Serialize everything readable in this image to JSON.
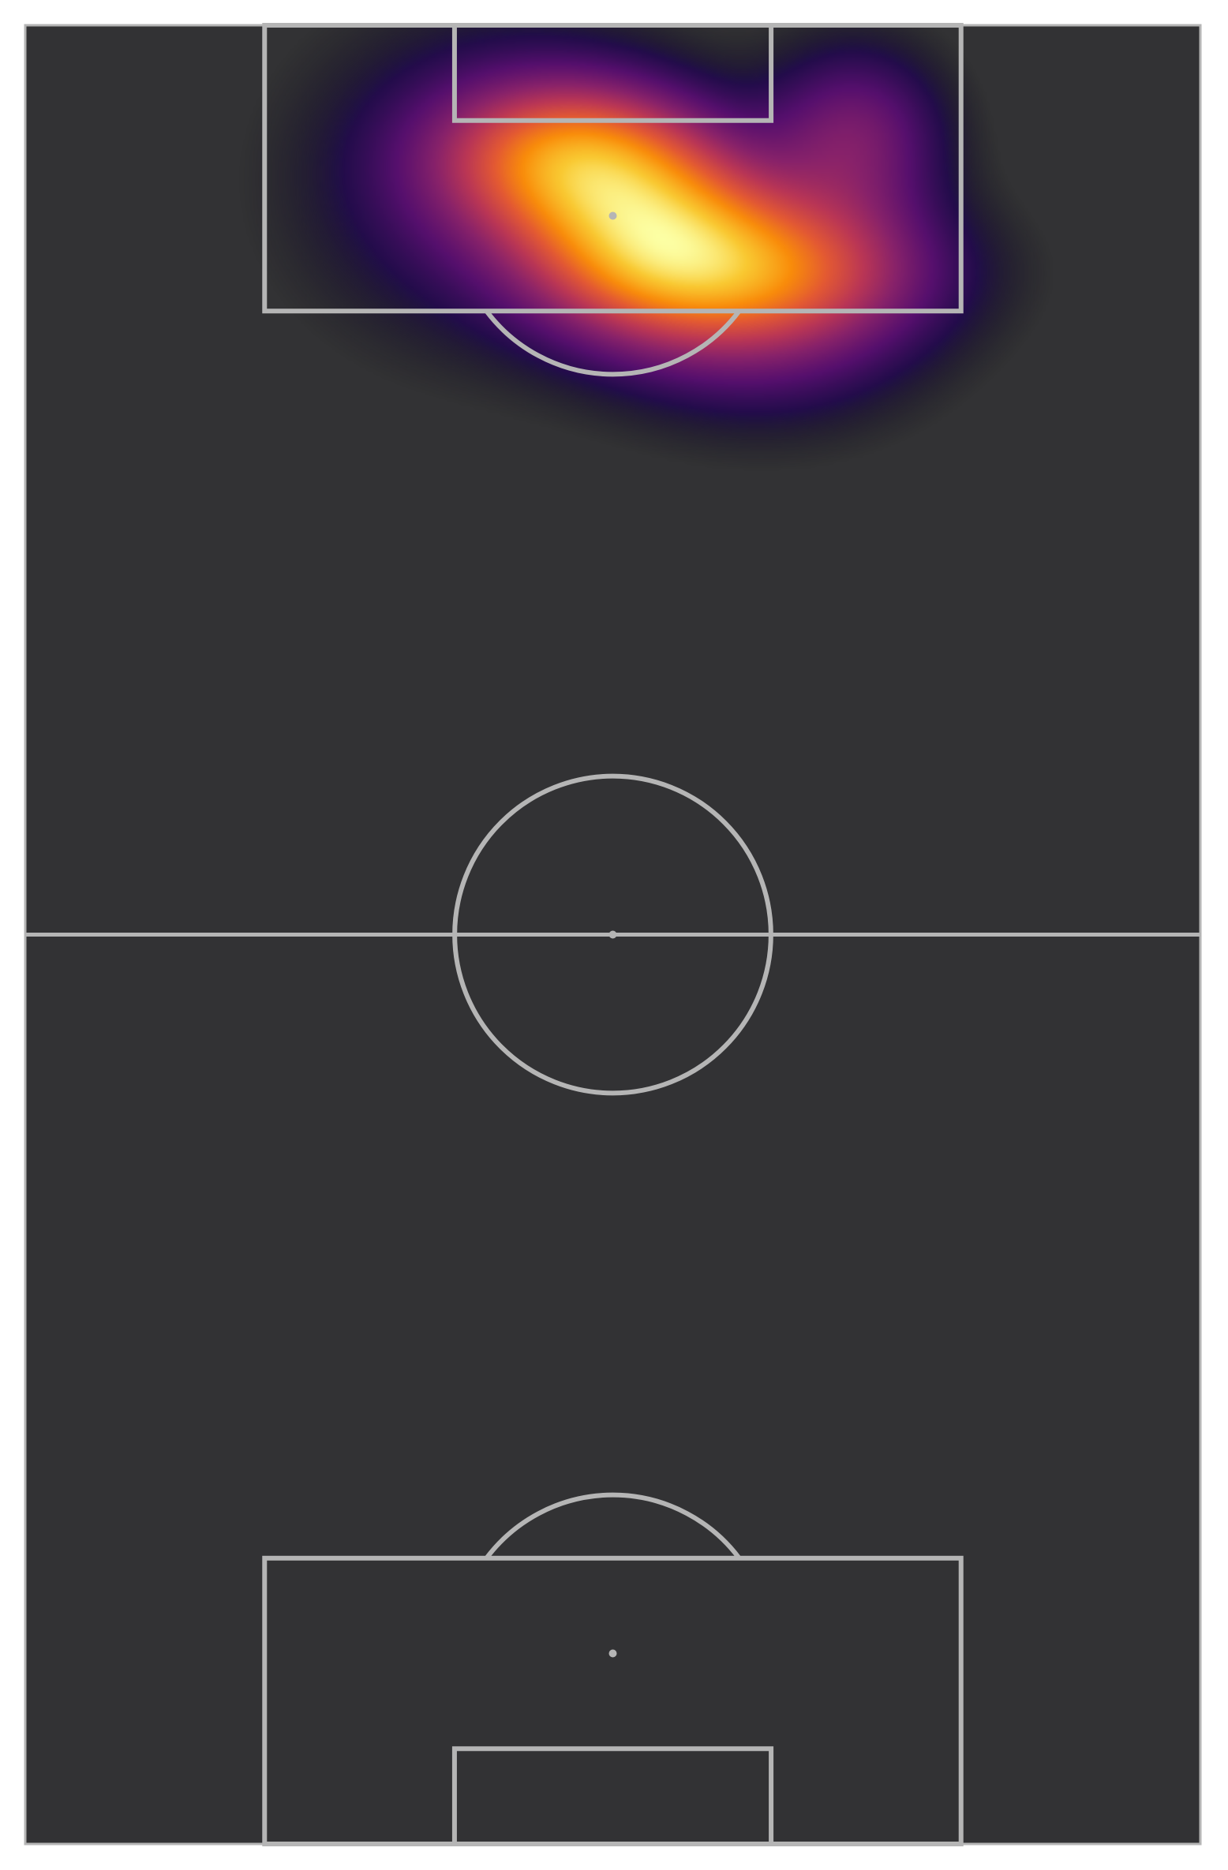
{
  "chart_data": {
    "type": "heatmap",
    "title": "",
    "xlabel": "",
    "ylabel": "",
    "orientation": "vertical",
    "pitch_length": 105,
    "pitch_width": 68,
    "x_range": [
      0,
      68
    ],
    "y_range": [
      0,
      105
    ],
    "colormap": "inferno",
    "density_peaks": [
      {
        "x": 31.5,
        "y": 97.5,
        "sigma_x": 5.0,
        "sigma_y": 3.0,
        "weight": 0.85
      },
      {
        "x": 36.2,
        "y": 93.0,
        "sigma_x": 5.0,
        "sigma_y": 3.8,
        "weight": 1.0
      },
      {
        "x": 43.0,
        "y": 91.0,
        "sigma_x": 6.5,
        "sigma_y": 3.0,
        "weight": 0.7
      },
      {
        "x": 48.0,
        "y": 98.5,
        "sigma_x": 3.5,
        "sigma_y": 3.5,
        "weight": 0.45
      },
      {
        "x": 27.0,
        "y": 96.0,
        "sigma_x": 7.0,
        "sigma_y": 6.0,
        "weight": 0.3
      },
      {
        "x": 43.0,
        "y": 88.0,
        "sigma_x": 6.0,
        "sigma_y": 4.0,
        "weight": 0.35
      }
    ],
    "grid": false,
    "legend": "none"
  },
  "colors": {
    "pitch": "#323234",
    "line": "#b5b5b5",
    "background": "#ffffff"
  }
}
